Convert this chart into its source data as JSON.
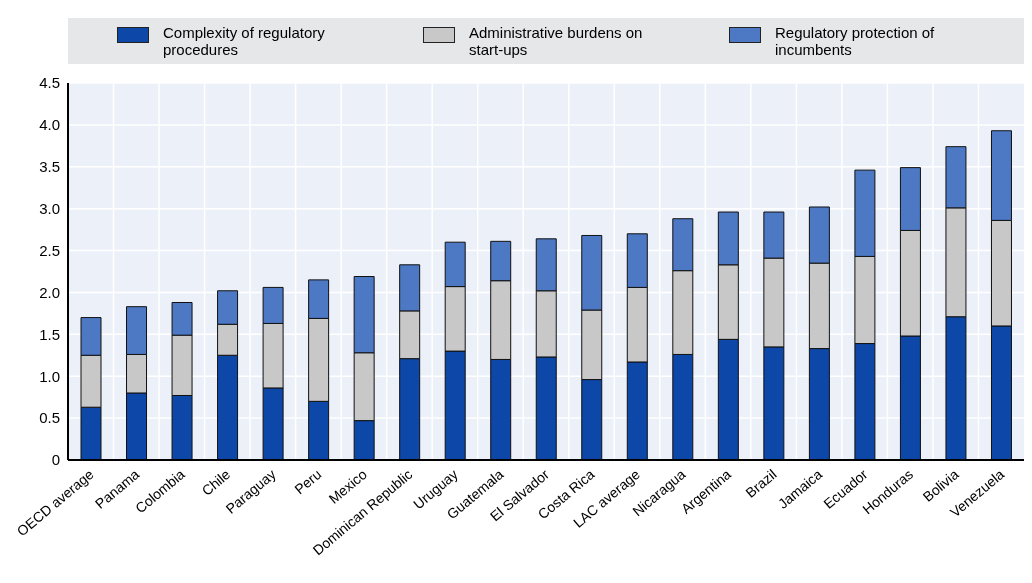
{
  "chart_data": {
    "type": "bar",
    "stacked": true,
    "categories": [
      "OECD average",
      "Panama",
      "Colombia",
      "Chile",
      "Paraguay",
      "Peru",
      "Mexico",
      "Dominican Republic",
      "Uruguay",
      "Guatemala",
      "El Salvador",
      "Costa Rica",
      "LAC average",
      "Nicaragua",
      "Argentina",
      "Brazil",
      "Jamaica",
      "Ecuador",
      "Honduras",
      "Bolivia",
      "Venezuela"
    ],
    "series": [
      {
        "name": "Complexity of regulatory procedures",
        "color": "#0d47a8",
        "values": [
          0.63,
          0.8,
          0.77,
          1.25,
          0.86,
          0.7,
          0.47,
          1.21,
          1.3,
          1.2,
          1.23,
          0.96,
          1.17,
          1.26,
          1.44,
          1.35,
          1.33,
          1.39,
          1.48,
          1.71,
          1.6
        ]
      },
      {
        "name": "Administrative burdens on start-ups",
        "color": "#c8c8c8",
        "values": [
          0.62,
          0.46,
          0.72,
          0.37,
          0.77,
          0.99,
          0.81,
          0.57,
          0.77,
          0.94,
          0.79,
          0.83,
          0.89,
          1.0,
          0.89,
          1.06,
          1.02,
          1.04,
          1.26,
          1.3,
          1.26
        ]
      },
      {
        "name": "Regulatory protection of incumbents",
        "color": "#4d78c4",
        "values": [
          0.45,
          0.57,
          0.39,
          0.4,
          0.43,
          0.46,
          0.91,
          0.55,
          0.53,
          0.47,
          0.62,
          0.89,
          0.64,
          0.62,
          0.63,
          0.55,
          0.67,
          1.03,
          0.75,
          0.73,
          1.07
        ]
      }
    ],
    "ylim": [
      0,
      4.5
    ],
    "yticks": [
      0,
      0.5,
      {
        "value": 1,
        "label": "1.0"
      },
      1.5,
      {
        "value": 2,
        "label": "2.0"
      },
      2.5,
      {
        "value": 3,
        "label": "3.0"
      },
      3.5,
      {
        "value": 4,
        "label": "4.0"
      },
      4.5
    ],
    "grid": true,
    "legend": "top"
  }
}
